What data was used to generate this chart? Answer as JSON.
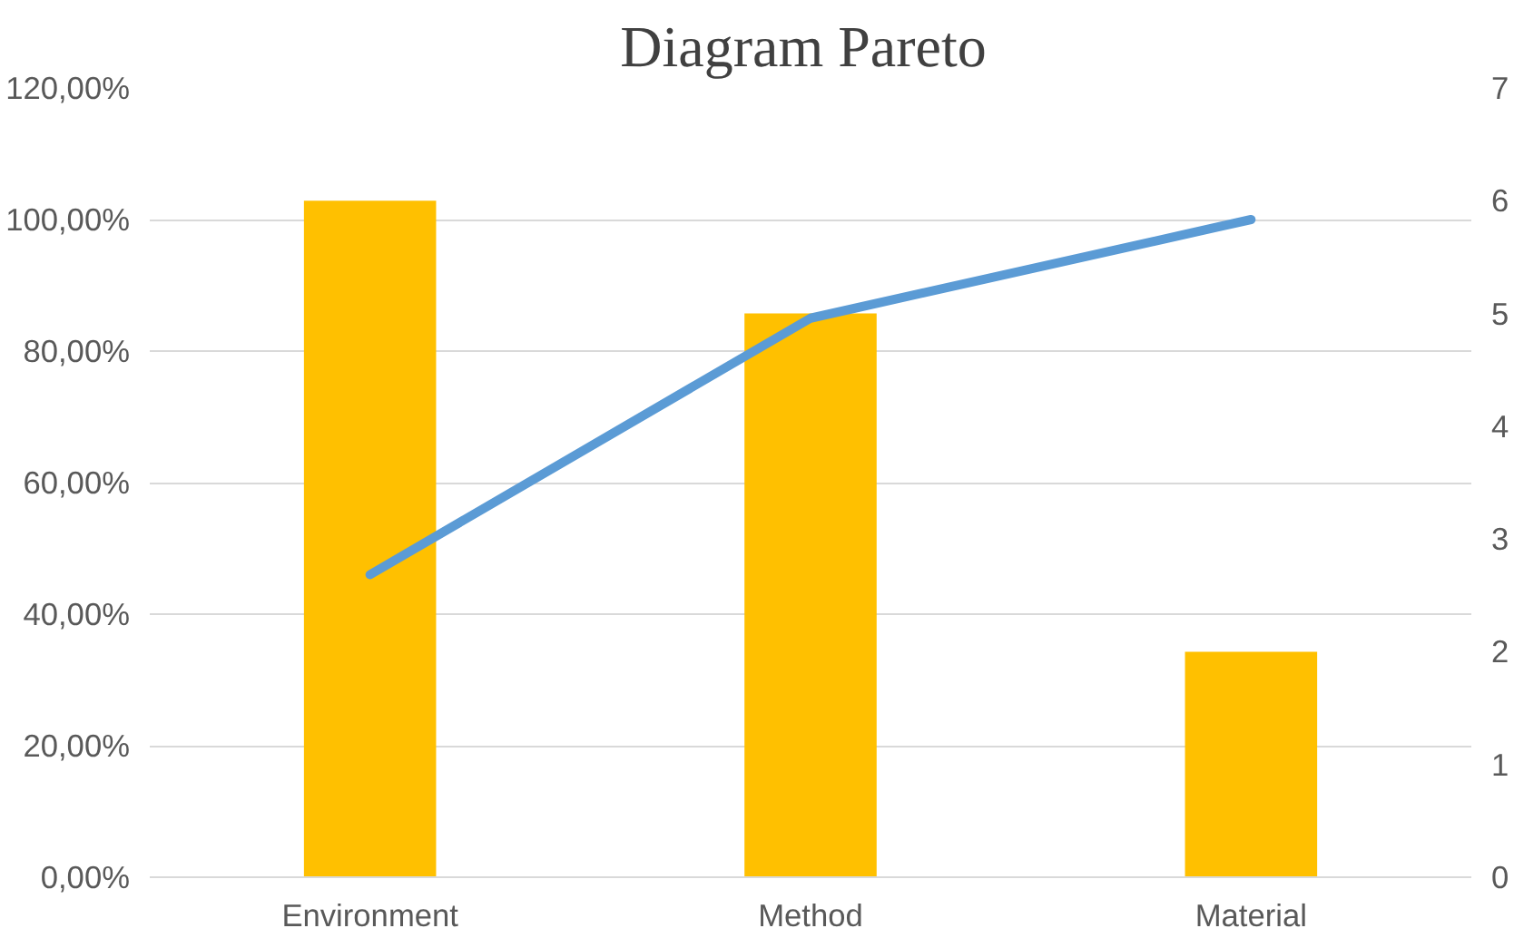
{
  "chart_data": {
    "type": "bar",
    "title": "Diagram  Pareto",
    "categories": [
      "Environment",
      "Method",
      "Material"
    ],
    "series": [
      {
        "axis": "y2",
        "color": "#ffc000",
        "values": [
          6,
          5,
          2
        ]
      },
      {
        "type": "line",
        "axis": "y",
        "color": "#5b9bd5",
        "values": [
          46,
          85,
          100
        ]
      }
    ],
    "ylim": [
      0,
      120
    ],
    "yticks": [
      {
        "value": 0,
        "label": "0,00%"
      },
      {
        "value": 20,
        "label": "20,00%"
      },
      {
        "value": 40,
        "label": "40,00%"
      },
      {
        "value": 60,
        "label": "60,00%"
      },
      {
        "value": 80,
        "label": "80,00%"
      },
      {
        "value": 100,
        "label": "100,00%"
      },
      {
        "value": 120,
        "label": "120,00%"
      }
    ],
    "y2lim": [
      0,
      7
    ],
    "y2ticks": [
      0,
      1,
      2,
      3,
      4,
      5,
      6,
      7
    ],
    "grid": "y",
    "marker": "none",
    "line_style": "solid"
  }
}
